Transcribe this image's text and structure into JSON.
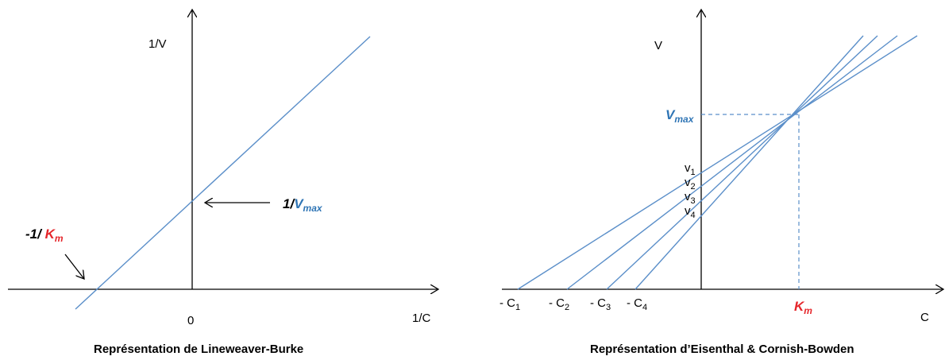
{
  "left": {
    "y_axis_label": "1/V",
    "x_axis_label": "1/C",
    "origin_label": "0",
    "intercept_y": {
      "prefix": "1/",
      "symbol": "V",
      "sub": "max"
    },
    "intercept_x": {
      "prefix": "-1/ ",
      "symbol": "K",
      "sub": "m"
    },
    "caption": "Représentation de Lineweaver-Burke"
  },
  "right": {
    "y_axis_label": "V",
    "x_axis_label": "C",
    "vmax": {
      "symbol": "V",
      "sub": "max"
    },
    "km": {
      "symbol": "K",
      "sub": "m"
    },
    "v_labels": [
      {
        "base": "v",
        "sub": "1"
      },
      {
        "base": "v",
        "sub": "2"
      },
      {
        "base": "v",
        "sub": "3"
      },
      {
        "base": "v",
        "sub": "4"
      }
    ],
    "c_labels": [
      {
        "base": "- C",
        "sub": "1"
      },
      {
        "base": "- C",
        "sub": "2"
      },
      {
        "base": "- C",
        "sub": "3"
      },
      {
        "base": "- C",
        "sub": "4"
      }
    ],
    "caption": "Représentation d’Eisenthal & Cornish-Bowden"
  },
  "colors": {
    "line": "#5b8fc9",
    "vmax_text": "#2f75b5",
    "km_text": "#e5262b"
  }
}
